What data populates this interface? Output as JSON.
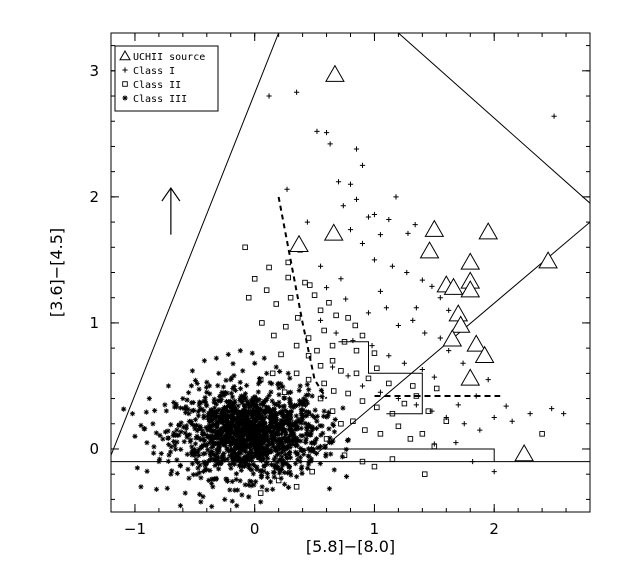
{
  "chart_data": {
    "type": "scatter",
    "xlabel": "[5.8]−[8.0]",
    "ylabel": "[3.6]−[4.5]",
    "xlim": [
      -1.2,
      2.8
    ],
    "ylim": [
      -0.5,
      3.3
    ],
    "x_ticks": [
      -1,
      0,
      1,
      2
    ],
    "y_ticks": [
      0,
      1,
      2,
      3
    ],
    "x_tick_labels": [
      "−1",
      "0",
      "1",
      "2"
    ],
    "y_tick_labels": [
      "0",
      "1",
      "2",
      "3"
    ],
    "legend": {
      "placement": "top-left",
      "entries": [
        {
          "symbol": "triangle",
          "label": "UCHII source"
        },
        {
          "symbol": "plus",
          "label": "Class I"
        },
        {
          "symbol": "square",
          "label": "Class II"
        },
        {
          "symbol": "asterisk",
          "label": "Class III"
        }
      ]
    },
    "series": [
      {
        "name": "UCHII source",
        "marker": "triangle",
        "points": [
          [
            0.67,
            2.97
          ],
          [
            0.37,
            1.62
          ],
          [
            0.66,
            1.71
          ],
          [
            1.5,
            1.74
          ],
          [
            1.95,
            1.72
          ],
          [
            1.46,
            1.57
          ],
          [
            1.8,
            1.48
          ],
          [
            2.45,
            1.49
          ],
          [
            1.8,
            1.33
          ],
          [
            1.6,
            1.3
          ],
          [
            1.66,
            1.28
          ],
          [
            1.8,
            1.26
          ],
          [
            1.7,
            1.07
          ],
          [
            1.72,
            0.98
          ],
          [
            1.65,
            0.87
          ],
          [
            1.85,
            0.83
          ],
          [
            1.92,
            0.74
          ],
          [
            1.8,
            0.56
          ],
          [
            2.25,
            -0.04
          ]
        ]
      },
      {
        "name": "Class I",
        "marker": "plus",
        "points": [
          [
            0.12,
            2.8
          ],
          [
            0.35,
            2.83
          ],
          [
            0.52,
            2.52
          ],
          [
            0.6,
            2.51
          ],
          [
            0.63,
            2.42
          ],
          [
            0.85,
            2.38
          ],
          [
            0.9,
            2.25
          ],
          [
            0.7,
            2.12
          ],
          [
            0.74,
            1.93
          ],
          [
            0.85,
            1.98
          ],
          [
            0.95,
            1.84
          ],
          [
            1.0,
            1.86
          ],
          [
            1.12,
            1.82
          ],
          [
            1.28,
            1.71
          ],
          [
            1.34,
            1.78
          ],
          [
            1.05,
            1.7
          ],
          [
            0.8,
            1.74
          ],
          [
            0.9,
            1.63
          ],
          [
            1.0,
            1.5
          ],
          [
            1.15,
            1.45
          ],
          [
            1.27,
            1.4
          ],
          [
            1.4,
            1.34
          ],
          [
            1.48,
            1.29
          ],
          [
            1.55,
            1.2
          ],
          [
            0.55,
            1.45
          ],
          [
            0.6,
            1.28
          ],
          [
            0.76,
            1.19
          ],
          [
            0.95,
            1.08
          ],
          [
            1.1,
            1.12
          ],
          [
            1.2,
            0.98
          ],
          [
            1.32,
            1.02
          ],
          [
            1.42,
            0.92
          ],
          [
            1.55,
            0.88
          ],
          [
            1.62,
            0.78
          ],
          [
            0.55,
            1.02
          ],
          [
            0.68,
            0.92
          ],
          [
            0.82,
            0.86
          ],
          [
            0.98,
            0.82
          ],
          [
            1.12,
            0.74
          ],
          [
            1.25,
            0.68
          ],
          [
            1.4,
            0.63
          ],
          [
            1.5,
            0.57
          ],
          [
            0.65,
            0.65
          ],
          [
            0.78,
            0.58
          ],
          [
            0.9,
            0.5
          ],
          [
            1.05,
            0.45
          ],
          [
            1.2,
            0.4
          ],
          [
            1.35,
            0.35
          ],
          [
            1.48,
            0.3
          ],
          [
            1.6,
            0.25
          ],
          [
            1.75,
            0.2
          ],
          [
            1.88,
            0.15
          ],
          [
            2.0,
            0.25
          ],
          [
            2.1,
            0.34
          ],
          [
            2.15,
            0.22
          ],
          [
            2.3,
            0.28
          ],
          [
            2.48,
            0.32
          ],
          [
            2.58,
            0.28
          ],
          [
            1.7,
            0.35
          ],
          [
            1.85,
            0.42
          ],
          [
            1.95,
            0.55
          ],
          [
            1.68,
            0.05
          ],
          [
            1.82,
            -0.1
          ],
          [
            2.0,
            -0.18
          ],
          [
            1.5,
            0.04
          ],
          [
            2.5,
            2.64
          ],
          [
            0.44,
            1.8
          ],
          [
            0.27,
            2.06
          ],
          [
            0.8,
            2.1
          ],
          [
            1.18,
            2.0
          ],
          [
            1.05,
            1.25
          ],
          [
            0.72,
            1.35
          ],
          [
            1.35,
            1.12
          ],
          [
            1.62,
            1.1
          ],
          [
            1.74,
            0.68
          ]
        ]
      },
      {
        "name": "Class II",
        "marker": "square",
        "points": [
          [
            -0.08,
            1.6
          ],
          [
            0.0,
            1.35
          ],
          [
            0.1,
            1.26
          ],
          [
            0.18,
            1.15
          ],
          [
            0.28,
            1.48
          ],
          [
            0.38,
            1.58
          ],
          [
            0.42,
            1.32
          ],
          [
            0.5,
            1.22
          ],
          [
            0.55,
            1.1
          ],
          [
            0.36,
            1.04
          ],
          [
            0.26,
            0.97
          ],
          [
            0.16,
            0.9
          ],
          [
            0.45,
            0.88
          ],
          [
            0.58,
            0.94
          ],
          [
            0.65,
            0.82
          ],
          [
            0.75,
            0.85
          ],
          [
            0.85,
            0.78
          ],
          [
            0.35,
            0.82
          ],
          [
            0.22,
            0.75
          ],
          [
            0.45,
            0.74
          ],
          [
            0.55,
            0.66
          ],
          [
            0.65,
            0.7
          ],
          [
            0.72,
            0.62
          ],
          [
            0.85,
            0.6
          ],
          [
            0.95,
            0.56
          ],
          [
            0.35,
            0.6
          ],
          [
            0.45,
            0.55
          ],
          [
            0.58,
            0.52
          ],
          [
            0.66,
            0.46
          ],
          [
            0.78,
            0.44
          ],
          [
            0.9,
            0.38
          ],
          [
            1.02,
            0.33
          ],
          [
            1.15,
            0.28
          ],
          [
            0.55,
            0.4
          ],
          [
            0.65,
            0.3
          ],
          [
            0.72,
            0.2
          ],
          [
            0.82,
            0.22
          ],
          [
            0.92,
            0.15
          ],
          [
            1.05,
            0.12
          ],
          [
            1.2,
            0.18
          ],
          [
            1.3,
            0.08
          ],
          [
            1.4,
            0.12
          ],
          [
            1.5,
            0.02
          ],
          [
            1.25,
            0.36
          ],
          [
            1.32,
            0.5
          ],
          [
            1.12,
            0.52
          ],
          [
            1.02,
            0.64
          ],
          [
            1.0,
            0.76
          ],
          [
            0.9,
            0.9
          ],
          [
            0.78,
            1.04
          ],
          [
            0.62,
            1.16
          ],
          [
            0.46,
            1.3
          ],
          [
            0.28,
            1.36
          ],
          [
            0.06,
            1.0
          ],
          [
            0.6,
            0.08
          ],
          [
            0.75,
            -0.05
          ],
          [
            0.9,
            -0.1
          ],
          [
            1.0,
            -0.14
          ],
          [
            1.15,
            -0.08
          ],
          [
            1.6,
            0.22
          ],
          [
            1.45,
            0.3
          ],
          [
            1.35,
            0.42
          ],
          [
            1.52,
            0.48
          ],
          [
            2.4,
            0.12
          ],
          [
            1.42,
            -0.2
          ],
          [
            0.2,
            -0.25
          ],
          [
            0.05,
            -0.35
          ],
          [
            0.35,
            -0.3
          ],
          [
            0.48,
            -0.18
          ],
          [
            0.15,
            0.6
          ],
          [
            0.05,
            0.55
          ],
          [
            0.25,
            0.45
          ],
          [
            0.4,
            0.3
          ],
          [
            -0.05,
            1.2
          ],
          [
            0.12,
            1.44
          ],
          [
            0.3,
            1.2
          ],
          [
            0.52,
            0.78
          ],
          [
            0.68,
            1.06
          ],
          [
            0.84,
            0.98
          ]
        ]
      },
      {
        "name": "Class III",
        "marker": "asterisk",
        "points": [
          [
            -0.85,
            0.2
          ],
          [
            -0.8,
            -0.1
          ],
          [
            -0.9,
            0.05
          ],
          [
            -0.95,
            -0.3
          ],
          [
            -0.75,
            0.35
          ],
          [
            -0.7,
            -0.2
          ],
          [
            -0.65,
            0.15
          ],
          [
            -0.6,
            0.4
          ],
          [
            -0.58,
            -0.35
          ],
          [
            -0.55,
            0.28
          ],
          [
            -0.5,
            -0.05
          ],
          [
            -0.48,
            0.52
          ],
          [
            -0.45,
            -0.42
          ],
          [
            -0.4,
            0.45
          ],
          [
            -0.35,
            -0.3
          ],
          [
            -0.3,
            0.6
          ],
          [
            -0.25,
            -0.4
          ],
          [
            -0.2,
            0.55
          ],
          [
            -0.15,
            -0.45
          ],
          [
            -0.1,
            0.62
          ],
          [
            -0.05,
            -0.38
          ],
          [
            0.0,
            0.68
          ],
          [
            0.05,
            -0.42
          ],
          [
            0.1,
            0.6
          ],
          [
            0.15,
            -0.32
          ],
          [
            0.2,
            0.52
          ],
          [
            0.25,
            -0.28
          ],
          [
            0.3,
            0.45
          ],
          [
            0.35,
            -0.22
          ],
          [
            0.4,
            0.35
          ],
          [
            0.45,
            -0.12
          ],
          [
            0.5,
            0.25
          ],
          [
            0.55,
            0.02
          ],
          [
            -1.0,
            0.1
          ],
          [
            -0.98,
            -0.15
          ],
          [
            -1.02,
            0.28
          ],
          [
            -0.88,
            0.4
          ],
          [
            -0.82,
            -0.32
          ],
          [
            -0.72,
            0.5
          ],
          [
            -0.62,
            -0.45
          ],
          [
            -0.52,
            0.62
          ],
          [
            -0.42,
            0.7
          ],
          [
            -0.32,
            0.72
          ],
          [
            -0.22,
            0.75
          ],
          [
            -0.12,
            0.78
          ],
          [
            -0.02,
            0.76
          ],
          [
            0.08,
            0.72
          ],
          [
            0.18,
            0.65
          ],
          [
            0.28,
            0.6
          ],
          [
            0.38,
            0.5
          ],
          [
            0.48,
            0.42
          ],
          [
            0.58,
            0.3
          ],
          [
            0.62,
            0.16
          ],
          [
            0.64,
            0.05
          ]
        ]
      }
    ],
    "reference_lines": [
      {
        "style": "solid",
        "points": [
          [
            -1.2,
            -0.1
          ],
          [
            2.8,
            -0.1
          ]
        ]
      },
      {
        "style": "solid",
        "points": [
          [
            -1.2,
            -0.05
          ],
          [
            0.2,
            3.3
          ]
        ]
      },
      {
        "style": "solid",
        "points": [
          [
            1.2,
            3.3
          ],
          [
            2.8,
            1.95
          ]
        ]
      },
      {
        "style": "solid",
        "points": [
          [
            0.5,
            -0.05
          ],
          [
            2.8,
            1.8
          ]
        ]
      },
      {
        "style": "solid",
        "points": [
          [
            0.4,
            0.0
          ],
          [
            2.0,
            0.0
          ],
          [
            2.0,
            -0.1
          ]
        ]
      },
      {
        "style": "solid",
        "points": [
          [
            0.7,
            0.85
          ],
          [
            0.95,
            0.85
          ],
          [
            0.95,
            0.6
          ],
          [
            1.4,
            0.6
          ],
          [
            1.4,
            0.28
          ],
          [
            1.1,
            0.28
          ]
        ]
      },
      {
        "style": "dashed",
        "points": [
          [
            0.2,
            2.0
          ],
          [
            0.3,
            1.5
          ],
          [
            0.4,
            1.0
          ],
          [
            0.5,
            0.55
          ],
          [
            0.6,
            0.4
          ]
        ]
      },
      {
        "style": "dashed",
        "points": [
          [
            1.0,
            0.42
          ],
          [
            2.05,
            0.42
          ]
        ]
      }
    ],
    "arrow": {
      "from": [
        -0.7,
        1.7
      ],
      "to": [
        -0.7,
        2.07
      ]
    }
  }
}
